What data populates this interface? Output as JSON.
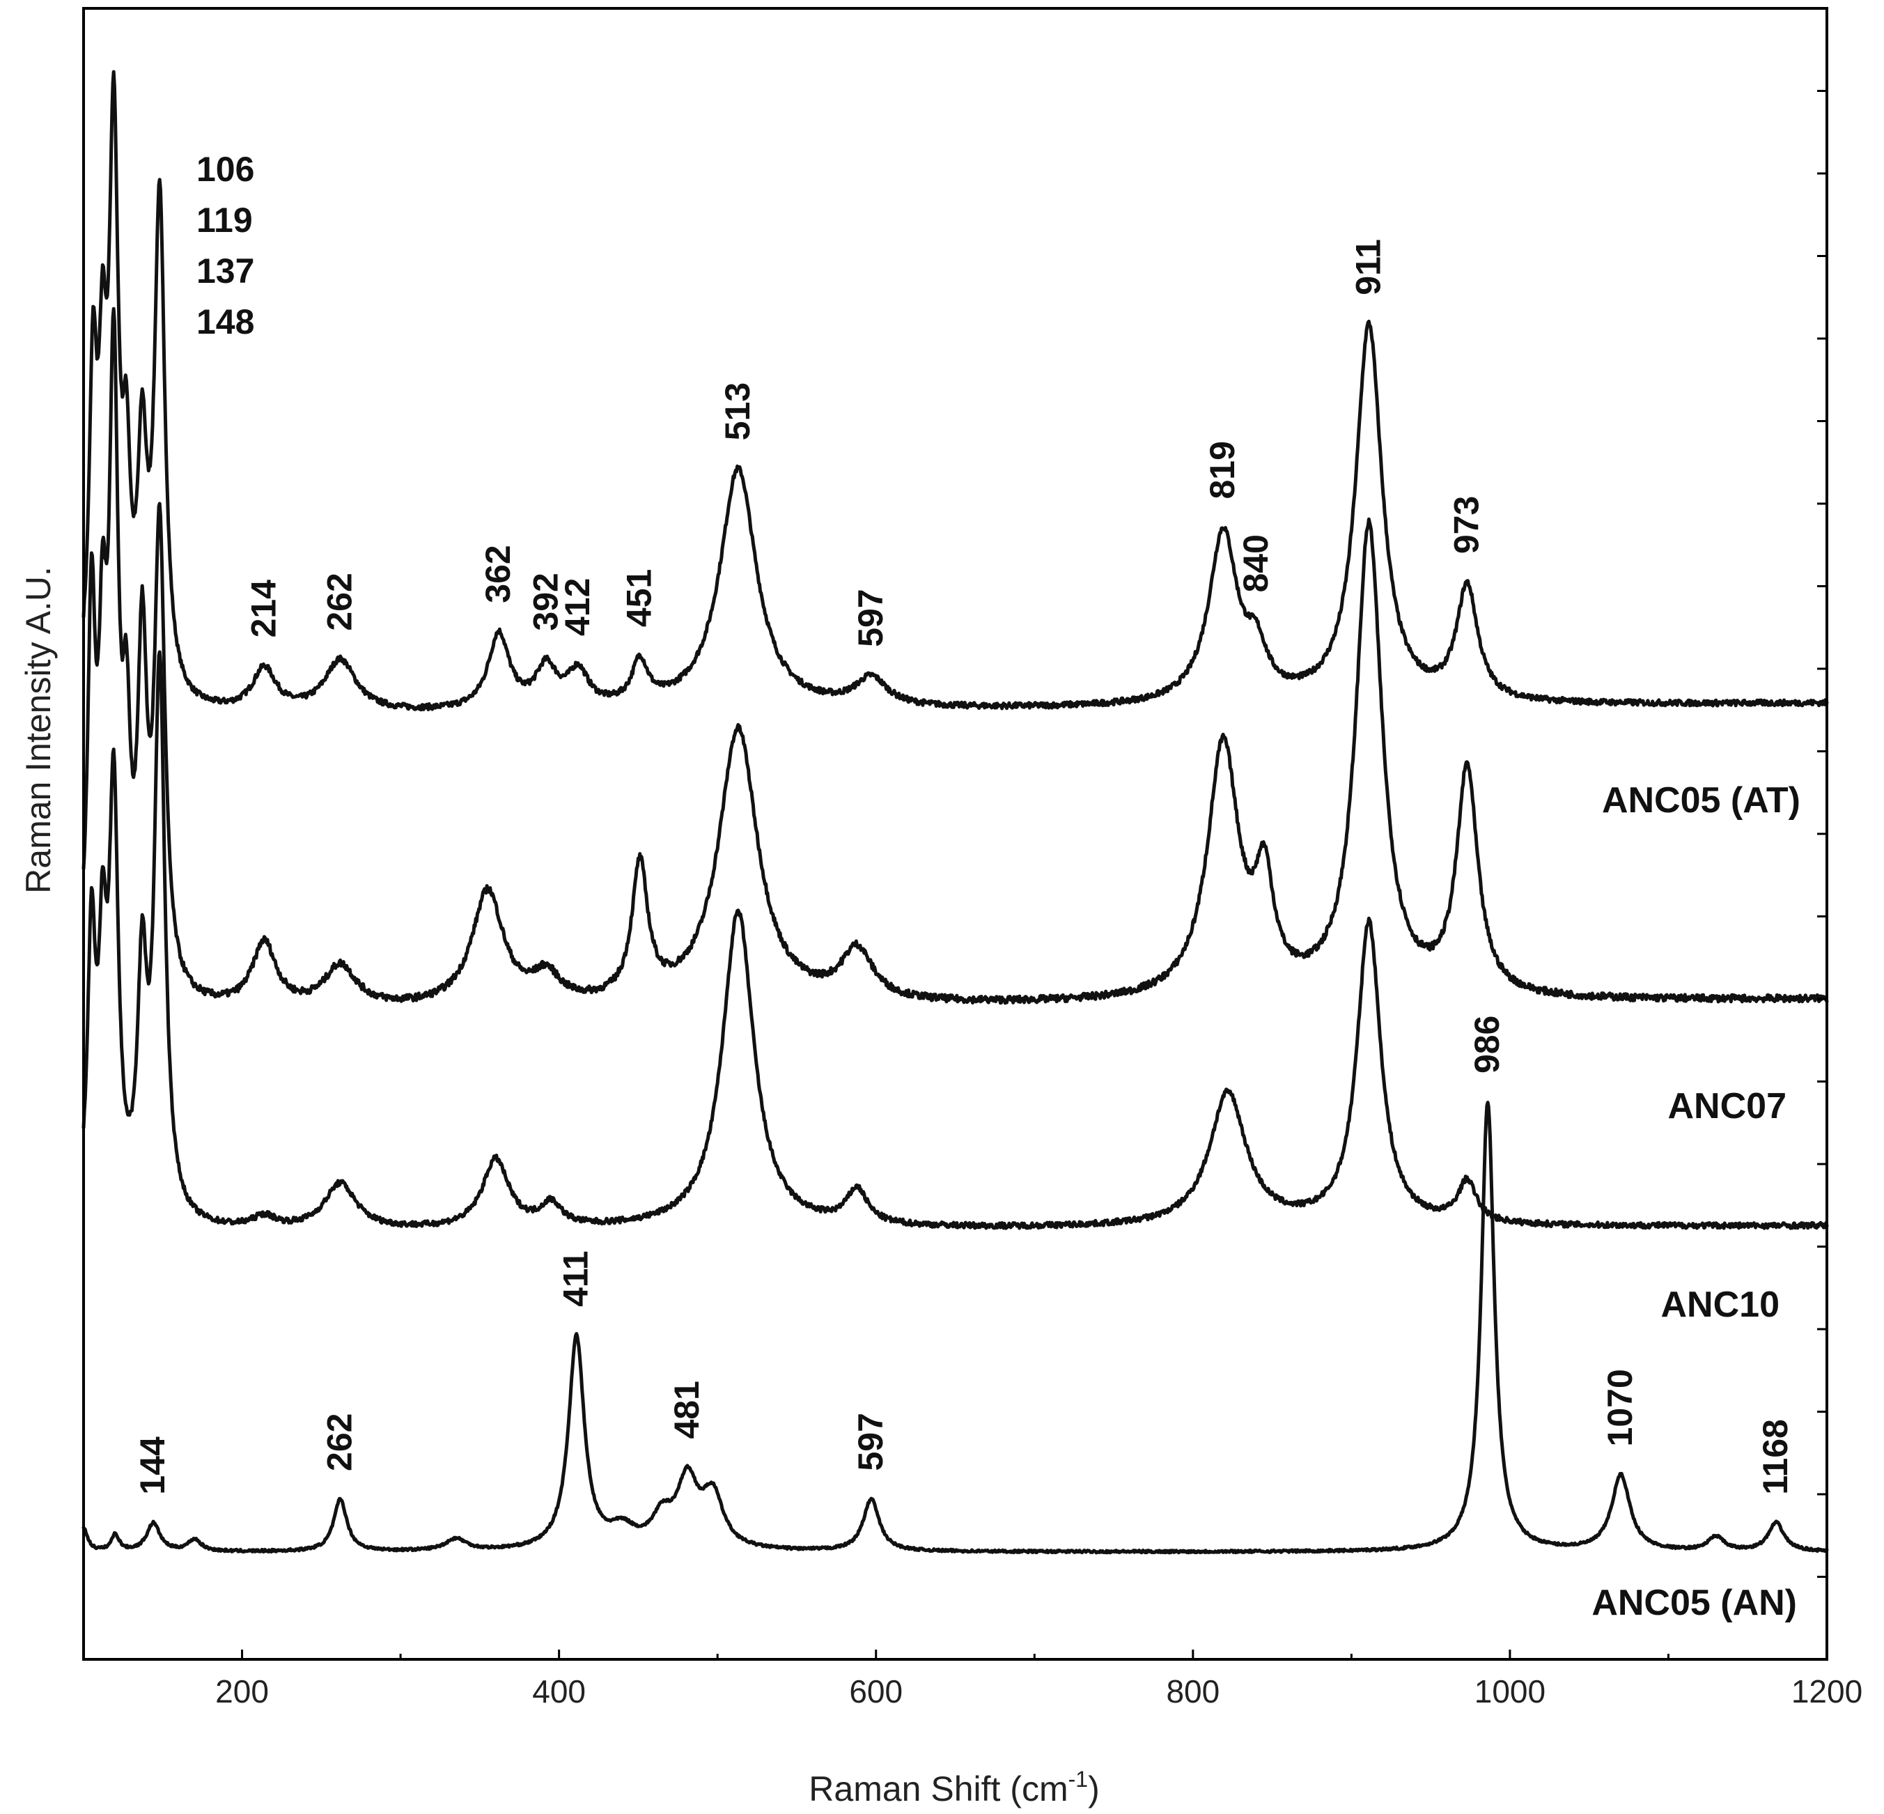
{
  "chart_data": {
    "type": "line",
    "title": "",
    "xlabel": "Raman Shift (cm",
    "xlabel_sup": "-1",
    "xlabel_close": ")",
    "ylabel": "Raman Intensity A.U.",
    "xlim": [
      100,
      1200
    ],
    "x_ticks": [
      200,
      400,
      600,
      800,
      1000,
      1200
    ],
    "y_tick_count": 20,
    "grid": false,
    "series": [
      {
        "name": "ANC05 (AT)",
        "baseline": 0.0,
        "noise": 0.012,
        "peaks": [
          {
            "x": 106,
            "h": 1.3,
            "w": 3
          },
          {
            "x": 112,
            "h": 1.1,
            "w": 3
          },
          {
            "x": 119,
            "h": 2.3,
            "w": 3.5
          },
          {
            "x": 127,
            "h": 0.8,
            "w": 3
          },
          {
            "x": 137,
            "h": 0.95,
            "w": 3.5
          },
          {
            "x": 148,
            "h": 2.1,
            "w": 4
          },
          {
            "x": 214,
            "h": 0.18,
            "w": 9
          },
          {
            "x": 262,
            "h": 0.22,
            "w": 12
          },
          {
            "x": 362,
            "h": 0.32,
            "w": 8
          },
          {
            "x": 392,
            "h": 0.17,
            "w": 8
          },
          {
            "x": 412,
            "h": 0.15,
            "w": 8
          },
          {
            "x": 451,
            "h": 0.18,
            "w": 6
          },
          {
            "x": 513,
            "h": 1.02,
            "w": 14
          },
          {
            "x": 597,
            "h": 0.12,
            "w": 12
          },
          {
            "x": 819,
            "h": 0.72,
            "w": 11
          },
          {
            "x": 840,
            "h": 0.18,
            "w": 8
          },
          {
            "x": 911,
            "h": 1.6,
            "w": 10
          },
          {
            "x": 973,
            "h": 0.48,
            "w": 8
          }
        ],
        "peak_labels": [
          {
            "x": 214,
            "text": "214"
          },
          {
            "x": 262,
            "text": "262"
          },
          {
            "x": 362,
            "text": "362"
          },
          {
            "x": 392,
            "text": "392"
          },
          {
            "x": 412,
            "text": "412"
          },
          {
            "x": 451,
            "text": "451"
          },
          {
            "x": 513,
            "text": "513"
          },
          {
            "x": 597,
            "text": "597"
          },
          {
            "x": 819,
            "text": "819"
          },
          {
            "x": 840,
            "text": "840"
          },
          {
            "x": 911,
            "text": "911"
          },
          {
            "x": 973,
            "text": "973"
          }
        ],
        "header_labels": [
          "106",
          "119",
          "137",
          "148"
        ]
      },
      {
        "name": "ANC07",
        "baseline": 0.0,
        "noise": 0.015,
        "peaks": [
          {
            "x": 105,
            "h": 1.6,
            "w": 3
          },
          {
            "x": 112,
            "h": 1.2,
            "w": 3
          },
          {
            "x": 119,
            "h": 2.6,
            "w": 3.5
          },
          {
            "x": 127,
            "h": 0.9,
            "w": 3
          },
          {
            "x": 137,
            "h": 1.4,
            "w": 3.5
          },
          {
            "x": 148,
            "h": 2.0,
            "w": 4
          },
          {
            "x": 214,
            "h": 0.28,
            "w": 9
          },
          {
            "x": 262,
            "h": 0.18,
            "w": 12
          },
          {
            "x": 355,
            "h": 0.5,
            "w": 12
          },
          {
            "x": 392,
            "h": 0.12,
            "w": 10
          },
          {
            "x": 451,
            "h": 0.58,
            "w": 6
          },
          {
            "x": 513,
            "h": 1.2,
            "w": 15
          },
          {
            "x": 588,
            "h": 0.22,
            "w": 12
          },
          {
            "x": 819,
            "h": 1.1,
            "w": 12
          },
          {
            "x": 845,
            "h": 0.45,
            "w": 7
          },
          {
            "x": 911,
            "h": 2.05,
            "w": 10
          },
          {
            "x": 973,
            "h": 0.98,
            "w": 8
          }
        ],
        "peak_labels": [],
        "header_labels": []
      },
      {
        "name": "ANC10",
        "baseline": 0.0,
        "noise": 0.012,
        "peaks": [
          {
            "x": 105,
            "h": 1.2,
            "w": 3
          },
          {
            "x": 112,
            "h": 1.0,
            "w": 3
          },
          {
            "x": 119,
            "h": 1.8,
            "w": 3.5
          },
          {
            "x": 137,
            "h": 1.0,
            "w": 3.5
          },
          {
            "x": 148,
            "h": 2.4,
            "w": 4
          },
          {
            "x": 214,
            "h": 0.05,
            "w": 9
          },
          {
            "x": 262,
            "h": 0.2,
            "w": 12
          },
          {
            "x": 360,
            "h": 0.3,
            "w": 10
          },
          {
            "x": 395,
            "h": 0.1,
            "w": 8
          },
          {
            "x": 513,
            "h": 1.38,
            "w": 12
          },
          {
            "x": 588,
            "h": 0.15,
            "w": 8
          },
          {
            "x": 822,
            "h": 0.58,
            "w": 14
          },
          {
            "x": 911,
            "h": 1.32,
            "w": 9
          },
          {
            "x": 973,
            "h": 0.18,
            "w": 7
          }
        ],
        "peak_labels": [],
        "header_labels": []
      },
      {
        "name": "ANC05 (AN)",
        "baseline": 0.0,
        "noise": 0.005,
        "peaks": [
          {
            "x": 100,
            "h": 0.1,
            "w": 3
          },
          {
            "x": 120,
            "h": 0.07,
            "w": 3
          },
          {
            "x": 144,
            "h": 0.12,
            "w": 5
          },
          {
            "x": 170,
            "h": 0.05,
            "w": 5
          },
          {
            "x": 262,
            "h": 0.22,
            "w": 5
          },
          {
            "x": 335,
            "h": 0.05,
            "w": 8
          },
          {
            "x": 411,
            "h": 0.9,
            "w": 6
          },
          {
            "x": 440,
            "h": 0.08,
            "w": 10
          },
          {
            "x": 465,
            "h": 0.12,
            "w": 8
          },
          {
            "x": 481,
            "h": 0.28,
            "w": 8
          },
          {
            "x": 497,
            "h": 0.22,
            "w": 8
          },
          {
            "x": 597,
            "h": 0.22,
            "w": 6
          },
          {
            "x": 986,
            "h": 1.9,
            "w": 5
          },
          {
            "x": 1070,
            "h": 0.32,
            "w": 7
          },
          {
            "x": 1130,
            "h": 0.06,
            "w": 6
          },
          {
            "x": 1168,
            "h": 0.12,
            "w": 6
          }
        ],
        "peak_labels": [
          {
            "x": 144,
            "text": "144"
          },
          {
            "x": 262,
            "text": "262"
          },
          {
            "x": 411,
            "text": "411"
          },
          {
            "x": 481,
            "text": "481"
          },
          {
            "x": 597,
            "text": "597"
          },
          {
            "x": 986,
            "text": "986"
          },
          {
            "x": 1070,
            "text": "1070"
          },
          {
            "x": 1168,
            "text": "1168"
          }
        ],
        "header_labels": []
      }
    ]
  }
}
